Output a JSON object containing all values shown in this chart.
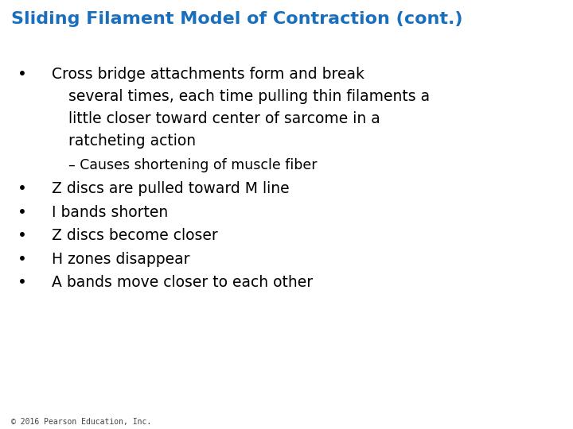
{
  "title": "Sliding Filament Model of Contraction (cont.)",
  "title_color": "#1a6fbd",
  "title_fontsize": 16,
  "title_bold": true,
  "background_color": "#ffffff",
  "sub_bullet": "– Causes shortening of muscle fiber",
  "bullets": [
    "Z discs are pulled toward M line",
    "I bands shorten",
    "Z discs become closer",
    "H zones disappear",
    "A bands move closer to each other"
  ],
  "bullet_fontsize": 13.5,
  "sub_bullet_fontsize": 12.5,
  "text_color": "#000000",
  "footer": "© 2016 Pearson Education, Inc.",
  "footer_fontsize": 7,
  "bullet1_lines": [
    "Cross bridge attachments form and break",
    "several times, each time pulling thin filaments a",
    "little closer toward center of sarcome in a",
    "ratcheting action"
  ]
}
